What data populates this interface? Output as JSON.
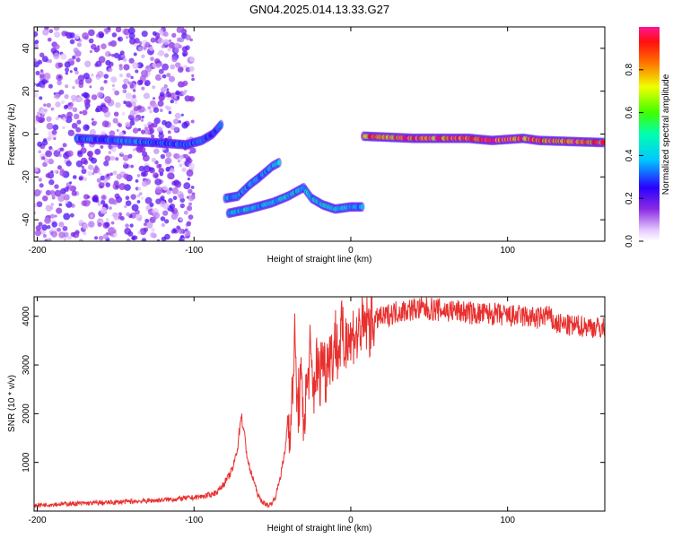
{
  "title": "GN04.2025.014.13.33.G27",
  "colors": {
    "snr_line": "#e8302e",
    "axis": "#000000",
    "background": "#ffffff"
  },
  "chart_data": [
    {
      "type": "heatmap",
      "xlabel": "Height of straight line (km)",
      "ylabel": "Frequency (Hz)",
      "colorbar_label": "Normalized spectral amplitude",
      "colormap": "rainbow (white → violet → blue → cyan → green → yellow → red → magenta)",
      "xlim": [
        -202,
        162
      ],
      "ylim": [
        -50,
        50
      ],
      "xticks": [
        -200,
        -100,
        0,
        100
      ],
      "yticks": [
        -40,
        -20,
        0,
        20,
        40
      ],
      "colorbar_ticks": [
        "0.0",
        "0.2",
        "0.4",
        "0.6",
        "0.8"
      ],
      "colorbar_range": [
        0,
        1
      ],
      "features": [
        {
          "name": "noise",
          "x_range": [
            -202,
            -100
          ],
          "freq_range": [
            -50,
            50
          ],
          "amplitude": 0.15
        },
        {
          "name": "track-1",
          "points": [
            [
              -175,
              -2
            ],
            [
              -150,
              -3
            ],
            [
              -125,
              -4
            ],
            [
              -105,
              -5
            ],
            [
              -95,
              -3
            ],
            [
              -88,
              0
            ],
            [
              -82,
              5
            ]
          ],
          "amplitude": 0.35
        },
        {
          "name": "track-2",
          "points": [
            [
              -80,
              -30
            ],
            [
              -72,
              -29
            ],
            [
              -65,
              -24
            ],
            [
              -58,
              -20
            ],
            [
              -50,
              -15
            ],
            [
              -45,
              -13
            ]
          ],
          "amplitude": 0.4
        },
        {
          "name": "track-3",
          "points": [
            [
              -78,
              -37
            ],
            [
              -65,
              -35
            ],
            [
              -50,
              -32
            ],
            [
              -40,
              -29
            ],
            [
              -30,
              -25
            ],
            [
              -25,
              -30
            ],
            [
              -18,
              -33
            ],
            [
              -10,
              -35
            ],
            [
              0,
              -34
            ],
            [
              8,
              -34
            ]
          ],
          "amplitude": 0.45
        },
        {
          "name": "track-4",
          "points": [
            [
              8,
              -1
            ],
            [
              40,
              -2
            ],
            [
              75,
              -2
            ],
            [
              90,
              -3
            ],
            [
              110,
              -2
            ],
            [
              120,
              -3
            ],
            [
              162,
              -4
            ]
          ],
          "amplitude": 0.95
        }
      ]
    },
    {
      "type": "line",
      "xlabel": "Height of straight line (km)",
      "ylabel": "SNR (10 * v/v)",
      "xlim": [
        -202,
        162
      ],
      "ylim": [
        0,
        4400
      ],
      "xticks": [
        -200,
        -100,
        0,
        100
      ],
      "yticks": [
        1000,
        2000,
        3000,
        4000
      ],
      "x": [
        -202,
        -190,
        -180,
        -170,
        -160,
        -150,
        -140,
        -130,
        -120,
        -110,
        -100,
        -95,
        -90,
        -85,
        -82,
        -78,
        -75,
        -72,
        -70,
        -68,
        -66,
        -64,
        -62,
        -60,
        -58,
        -55,
        -52,
        -50,
        -48,
        -45,
        -42,
        -40,
        -38,
        -36,
        -34,
        -32,
        -30,
        -28,
        -26,
        -24,
        -22,
        -20,
        -18,
        -16,
        -14,
        -12,
        -10,
        -8,
        -6,
        -4,
        -2,
        0,
        2,
        4,
        6,
        8,
        10,
        12,
        14,
        16,
        18,
        20,
        25,
        30,
        40,
        50,
        60,
        70,
        80,
        90,
        100,
        110,
        120,
        125,
        130,
        140,
        150,
        162
      ],
      "y": [
        120,
        140,
        150,
        160,
        170,
        180,
        200,
        210,
        230,
        250,
        280,
        300,
        330,
        400,
        520,
        700,
        900,
        1350,
        2000,
        1600,
        1100,
        800,
        650,
        400,
        250,
        150,
        120,
        180,
        300,
        700,
        1200,
        2000,
        1700,
        3600,
        2100,
        2600,
        1900,
        2500,
        3200,
        2400,
        3000,
        2700,
        3300,
        2800,
        3400,
        3100,
        3600,
        3200,
        3700,
        3300,
        3800,
        3400,
        3750,
        3500,
        3850,
        3650,
        3900,
        3800,
        3950,
        3900,
        4000,
        3950,
        4050,
        4100,
        4150,
        4150,
        4120,
        4100,
        4050,
        4050,
        4000,
        4000,
        3950,
        4050,
        3850,
        3800,
        3800,
        3750
      ]
    }
  ]
}
